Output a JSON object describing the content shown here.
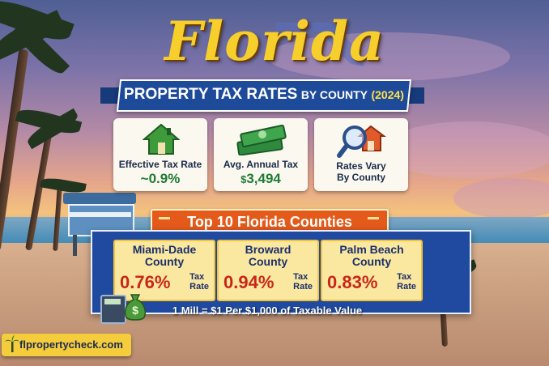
{
  "title": "Florida",
  "subtitle": {
    "main": "PROPERTY TAX RATES",
    "by": "BY COUNTY",
    "year": "(2024)"
  },
  "stats": [
    {
      "label": "Effective Tax Rate",
      "value": "~0.9%",
      "icon": "house-icon"
    },
    {
      "label": "Avg. Annual Tax",
      "currency": "$",
      "value": "3,494",
      "icon": "money-stack-icon"
    },
    {
      "label_line1": "Rates Vary",
      "label_line2": "By County",
      "icon": "magnifier-house-icon"
    }
  ],
  "section_heading": "Top 10 Florida Counties",
  "counties": [
    {
      "name_line1": "Miami-Dade",
      "name_line2": "County",
      "rate": "0.76%",
      "tax_line1": "Tax",
      "tax_line2": "Rate"
    },
    {
      "name_line1": "Broward",
      "name_line2": "County",
      "rate": "0.94%",
      "tax_line1": "Tax",
      "tax_line2": "Rate"
    },
    {
      "name_line1": "Palm Beach",
      "name_line2": "County",
      "rate": "0.83%",
      "tax_line1": "Tax",
      "tax_line2": "Rate"
    }
  ],
  "footnote": "1 Mill = $1 Per $1,000 of Taxable Value",
  "brand": "flpropertycheck.com",
  "colors": {
    "title_yellow": "#f7cf2c",
    "banner_blue": "#1e4a9a",
    "ribbon_orange": "#e35a1a",
    "rate_red": "#c8261a",
    "value_green": "#1f7a34"
  }
}
